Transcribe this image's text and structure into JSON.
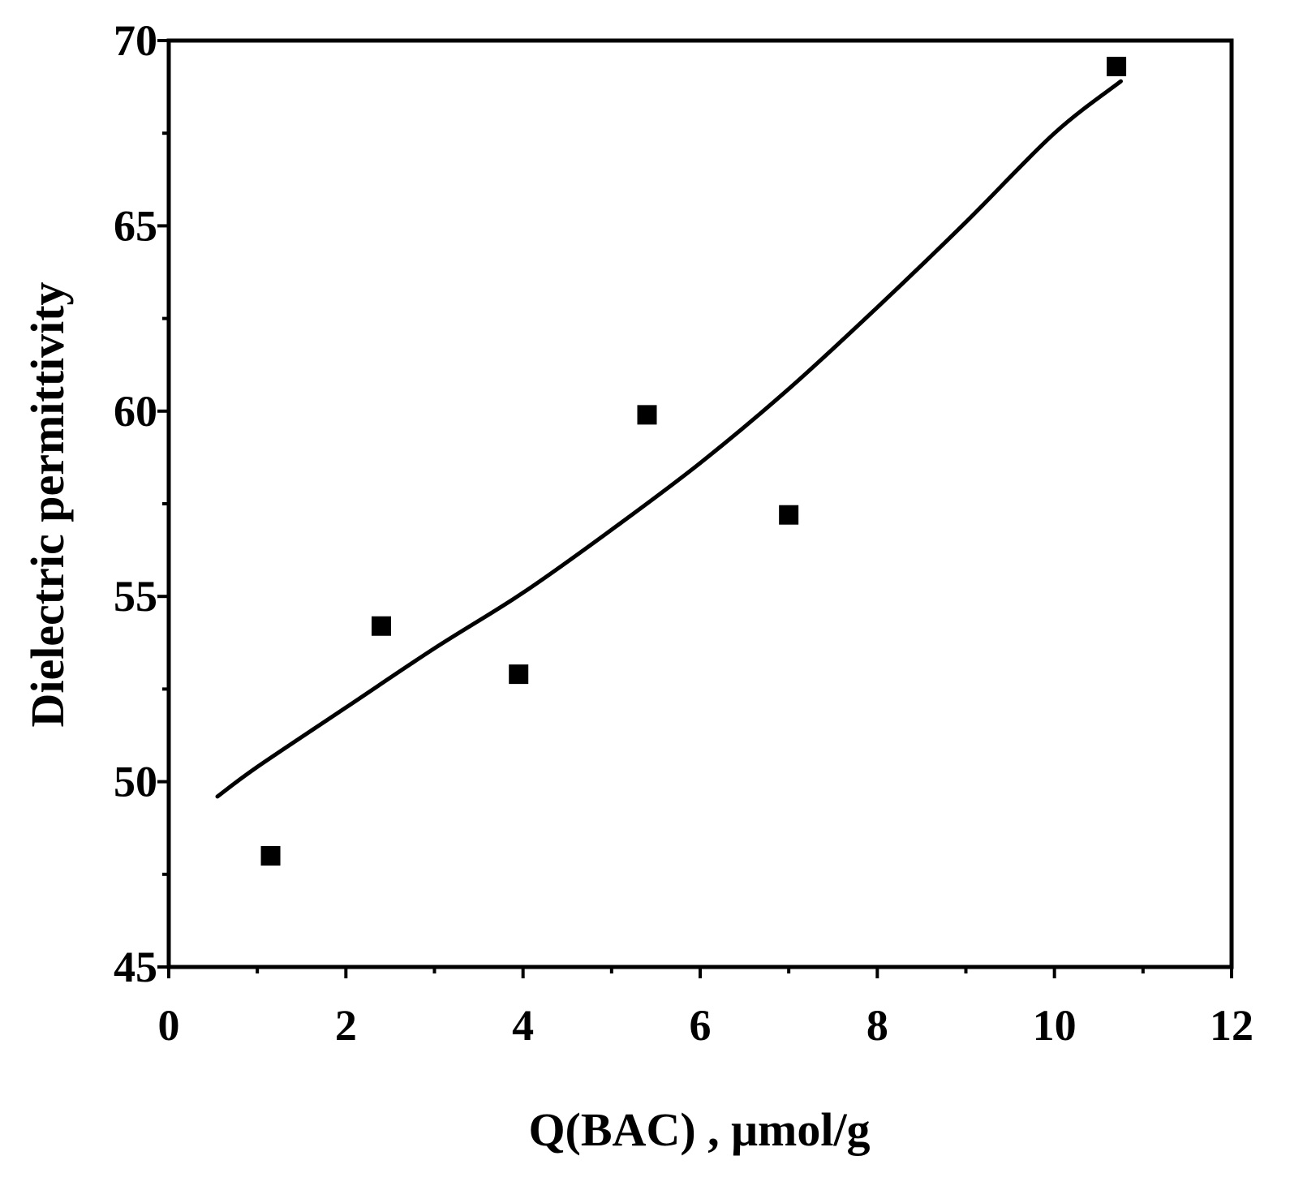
{
  "chart_data": {
    "type": "scatter",
    "title": "",
    "xlabel": "Q(BAC) , μmol/g",
    "ylabel": "Dielectric permittivity",
    "xlim": [
      0,
      12
    ],
    "ylim": [
      45,
      70
    ],
    "x_ticks": [
      0,
      2,
      4,
      6,
      8,
      10,
      12
    ],
    "y_ticks": [
      45,
      50,
      55,
      60,
      65,
      70
    ],
    "x_minor_step": 1,
    "y_minor_step": 2.5,
    "grid": false,
    "legend": "none",
    "series": [
      {
        "kind": "points",
        "marker": "square",
        "color": "#000000",
        "x": [
          1.15,
          2.4,
          3.95,
          5.4,
          7.0,
          10.7
        ],
        "y": [
          48.0,
          54.2,
          52.9,
          59.9,
          57.2,
          69.3
        ]
      },
      {
        "kind": "fit-curve",
        "color": "#000000",
        "x": [
          0.55,
          1.0,
          2.0,
          3.0,
          4.0,
          5.0,
          6.0,
          7.0,
          8.0,
          9.0,
          10.0,
          10.75
        ],
        "y": [
          49.6,
          50.4,
          52.0,
          53.6,
          55.1,
          56.8,
          58.6,
          60.6,
          62.8,
          65.1,
          67.5,
          68.9
        ]
      }
    ]
  }
}
